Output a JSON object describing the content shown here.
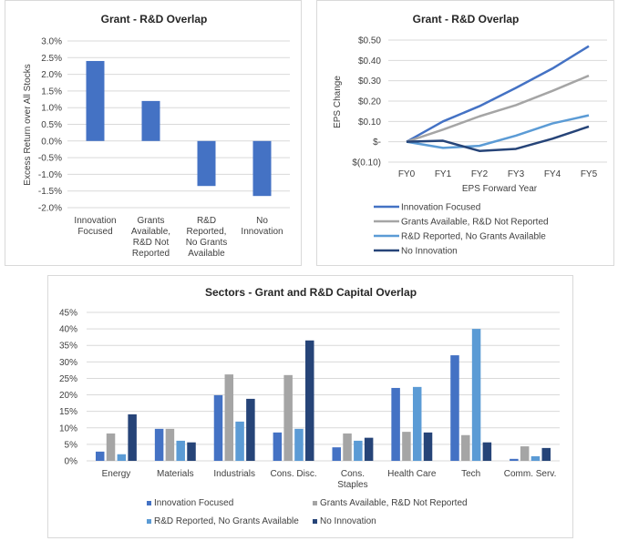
{
  "colors": {
    "innovation": "#4472c4",
    "grants": "#a5a5a5",
    "rd": "#5b9bd5",
    "none": "#264478"
  },
  "chart_data": [
    {
      "type": "bar",
      "title": "Grant - R&D Overlap",
      "xlabel": "",
      "ylabel": "Excess Return over All Stocks",
      "categories": [
        [
          "Innovation",
          "Focused"
        ],
        [
          "Grants",
          "Available,",
          "R&D Not",
          "Reported"
        ],
        [
          "R&D",
          "Reported,",
          "No Grants",
          "Available"
        ],
        [
          "No",
          "Innovation"
        ]
      ],
      "values": [
        2.4,
        1.2,
        -1.35,
        -1.65
      ],
      "value_unit": "%",
      "ylim": [
        -2.0,
        3.0
      ],
      "yticks": [
        "3.0%",
        "2.5%",
        "2.0%",
        "1.5%",
        "1.0%",
        "0.5%",
        "0.0%",
        "-0.5%",
        "-1.0%",
        "-1.5%",
        "-2.0%"
      ],
      "ytick_values": [
        3.0,
        2.5,
        2.0,
        1.5,
        1.0,
        0.5,
        0.0,
        -0.5,
        -1.0,
        -1.5,
        -2.0
      ],
      "grid": true,
      "legend": "none"
    },
    {
      "type": "line",
      "title": "Grant - R&D Overlap",
      "xlabel": "EPS Forward Year",
      "ylabel": "EPS Change",
      "x": [
        "FY0",
        "FY1",
        "FY2",
        "FY3",
        "FY4",
        "FY5"
      ],
      "series": [
        {
          "name": "Innovation Focused",
          "key": "innovation",
          "values": [
            0,
            0.1,
            0.175,
            0.265,
            0.36,
            0.47
          ]
        },
        {
          "name": "Grants Available, R&D Not Reported",
          "key": "grants",
          "values": [
            0,
            0.06,
            0.125,
            0.18,
            0.25,
            0.325
          ]
        },
        {
          "name": "R&D Reported, No Grants Available",
          "key": "rd",
          "values": [
            0,
            -0.03,
            -0.02,
            0.03,
            0.09,
            0.13
          ]
        },
        {
          "name": "No Innovation",
          "key": "none",
          "values": [
            0,
            0.005,
            -0.045,
            -0.035,
            0.015,
            0.075
          ]
        }
      ],
      "ylim": [
        -0.1,
        0.5
      ],
      "yticks": [
        "$0.50",
        "$0.40",
        "$0.30",
        "$0.20",
        "$0.10",
        "$-",
        "$(0.10)"
      ],
      "ytick_values": [
        0.5,
        0.4,
        0.3,
        0.2,
        0.1,
        0,
        -0.1
      ],
      "grid": true,
      "legend": "bottom"
    },
    {
      "type": "bar",
      "title": "Sectors - Grant and R&D Capital Overlap",
      "xlabel": "",
      "ylabel": "",
      "categories": [
        [
          "Energy"
        ],
        [
          "Materials"
        ],
        [
          "Industrials"
        ],
        [
          "Cons. Disc."
        ],
        [
          "Cons.",
          "Staples"
        ],
        [
          "Health Care"
        ],
        [
          "Tech"
        ],
        [
          "Comm. Serv."
        ]
      ],
      "series": [
        {
          "name": "Innovation Focused",
          "key": "innovation",
          "values": [
            2.8,
            9.7,
            19.9,
            8.6,
            4.1,
            22.1,
            32.0,
            0.6
          ]
        },
        {
          "name": "Grants Available, R&D Not Reported",
          "key": "grants",
          "values": [
            8.3,
            9.7,
            26.2,
            26.0,
            8.3,
            8.8,
            7.8,
            4.4
          ]
        },
        {
          "name": "R&D Reported, No Grants Available",
          "key": "rd",
          "values": [
            2.0,
            6.1,
            11.9,
            9.7,
            6.1,
            22.4,
            40.0,
            1.4
          ]
        },
        {
          "name": "No Innovation",
          "key": "none",
          "values": [
            14.1,
            5.6,
            18.8,
            36.5,
            7.0,
            8.6,
            5.6,
            3.9
          ]
        }
      ],
      "value_unit": "%",
      "ylim": [
        0,
        45
      ],
      "yticks": [
        "45%",
        "40%",
        "35%",
        "30%",
        "25%",
        "20%",
        "15%",
        "10%",
        "5%",
        "0%"
      ],
      "ytick_values": [
        45,
        40,
        35,
        30,
        25,
        20,
        15,
        10,
        5,
        0
      ],
      "grid": true,
      "legend": "bottom"
    }
  ]
}
